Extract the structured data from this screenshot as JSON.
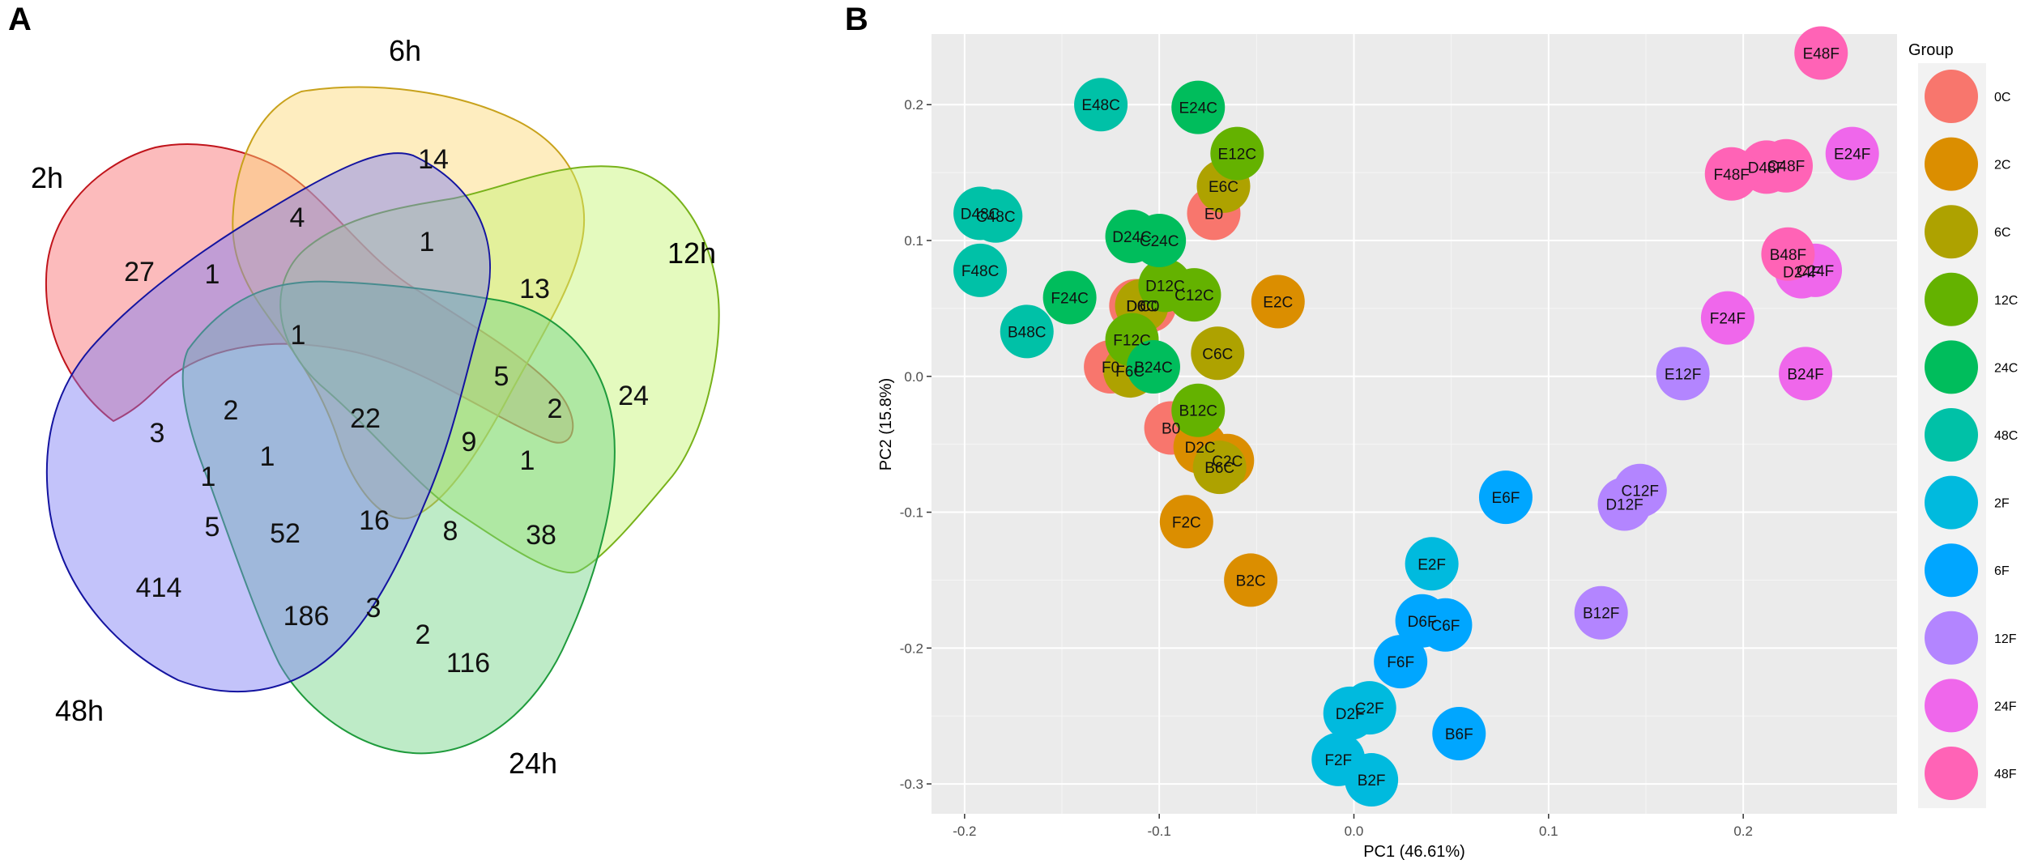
{
  "panels": {
    "a": "A",
    "b": "B"
  },
  "venn": {
    "sets": [
      {
        "name": "2h",
        "color": "#f8696b"
      },
      {
        "name": "6h",
        "color": "#fdd772"
      },
      {
        "name": "12h",
        "color": "#c4f46e"
      },
      {
        "name": "24h",
        "color": "#6ed283"
      },
      {
        "name": "48h",
        "color": "#7b7bf4"
      }
    ],
    "counts": [
      "27",
      "4",
      "14",
      "13",
      "24",
      "38",
      "116",
      "414",
      "1",
      "1",
      "2",
      "3",
      "1",
      "1",
      "5",
      "52",
      "186",
      "3",
      "2",
      "16",
      "8",
      "9",
      "1",
      "2",
      "5",
      "22",
      "1"
    ]
  },
  "chart_data": {
    "type": "scatter",
    "title": "",
    "xlabel": "PC1 (46.61%)",
    "ylabel": "PC2 (15.8%)",
    "xlim": [
      -0.217,
      0.279
    ],
    "ylim": [
      -0.322,
      0.252
    ],
    "xticks": [
      "-0.2",
      "-0.1",
      "0.0",
      "0.1",
      "0.2"
    ],
    "yticks": [
      "-0.3",
      "-0.2",
      "-0.1",
      "0.0",
      "0.1",
      "0.2"
    ],
    "legend_title": "Group",
    "legend_position": "right",
    "groups": [
      {
        "name": "0C",
        "color": "#f8766d"
      },
      {
        "name": "2C",
        "color": "#db8e00"
      },
      {
        "name": "6C",
        "color": "#aea200"
      },
      {
        "name": "12C",
        "color": "#64b200"
      },
      {
        "name": "24C",
        "color": "#00bd5c"
      },
      {
        "name": "48C",
        "color": "#00c1a7"
      },
      {
        "name": "2F",
        "color": "#00bade"
      },
      {
        "name": "6F",
        "color": "#00a6ff"
      },
      {
        "name": "12F",
        "color": "#b385ff"
      },
      {
        "name": "24F",
        "color": "#ef67eb"
      },
      {
        "name": "48F",
        "color": "#ff63b6"
      }
    ],
    "points": [
      {
        "label": "E0",
        "group": "0C",
        "x": -0.072,
        "y": 0.12
      },
      {
        "label": "D0",
        "group": "0C",
        "x": -0.112,
        "y": 0.052
      },
      {
        "label": "C0",
        "group": "0C",
        "x": -0.105,
        "y": 0.052
      },
      {
        "label": "F0",
        "group": "0C",
        "x": -0.125,
        "y": 0.007
      },
      {
        "label": "B0",
        "group": "0C",
        "x": -0.094,
        "y": -0.038
      },
      {
        "label": "E2C",
        "group": "2C",
        "x": -0.039,
        "y": 0.055
      },
      {
        "label": "D2C",
        "group": "2C",
        "x": -0.079,
        "y": -0.052
      },
      {
        "label": "C2C",
        "group": "2C",
        "x": -0.065,
        "y": -0.062
      },
      {
        "label": "F2C",
        "group": "2C",
        "x": -0.086,
        "y": -0.107
      },
      {
        "label": "B2C",
        "group": "2C",
        "x": -0.053,
        "y": -0.15
      },
      {
        "label": "E6C",
        "group": "6C",
        "x": -0.067,
        "y": 0.14
      },
      {
        "label": "D6C",
        "group": "6C",
        "x": -0.109,
        "y": 0.052
      },
      {
        "label": "C6C",
        "group": "6C",
        "x": -0.07,
        "y": 0.017
      },
      {
        "label": "F6C",
        "group": "6C",
        "x": -0.115,
        "y": 0.004
      },
      {
        "label": "B6C",
        "group": "6C",
        "x": -0.069,
        "y": -0.067
      },
      {
        "label": "E12C",
        "group": "12C",
        "x": -0.06,
        "y": 0.164
      },
      {
        "label": "D12C",
        "group": "12C",
        "x": -0.097,
        "y": 0.067
      },
      {
        "label": "C12C",
        "group": "12C",
        "x": -0.082,
        "y": 0.06
      },
      {
        "label": "F12C",
        "group": "12C",
        "x": -0.114,
        "y": 0.027
      },
      {
        "label": "B12C",
        "group": "12C",
        "x": -0.08,
        "y": -0.025
      },
      {
        "label": "E24C",
        "group": "24C",
        "x": -0.08,
        "y": 0.198
      },
      {
        "label": "D24C",
        "group": "24C",
        "x": -0.114,
        "y": 0.103
      },
      {
        "label": "C24C",
        "group": "24C",
        "x": -0.1,
        "y": 0.1
      },
      {
        "label": "F24C",
        "group": "24C",
        "x": -0.146,
        "y": 0.058
      },
      {
        "label": "B24C",
        "group": "24C",
        "x": -0.103,
        "y": 0.007
      },
      {
        "label": "E48C",
        "group": "48C",
        "x": -0.13,
        "y": 0.2
      },
      {
        "label": "D48C",
        "group": "48C",
        "x": -0.192,
        "y": 0.12
      },
      {
        "label": "C48C",
        "group": "48C",
        "x": -0.184,
        "y": 0.118
      },
      {
        "label": "F48C",
        "group": "48C",
        "x": -0.192,
        "y": 0.078
      },
      {
        "label": "B48C",
        "group": "48C",
        "x": -0.168,
        "y": 0.033
      },
      {
        "label": "E2F",
        "group": "2F",
        "x": 0.04,
        "y": -0.138
      },
      {
        "label": "D2F",
        "group": "2F",
        "x": -0.002,
        "y": -0.248
      },
      {
        "label": "C2F",
        "group": "2F",
        "x": 0.008,
        "y": -0.244
      },
      {
        "label": "F2F",
        "group": "2F",
        "x": -0.008,
        "y": -0.282
      },
      {
        "label": "B2F",
        "group": "2F",
        "x": 0.009,
        "y": -0.297
      },
      {
        "label": "E6F",
        "group": "6F",
        "x": 0.078,
        "y": -0.089
      },
      {
        "label": "D6F",
        "group": "6F",
        "x": 0.035,
        "y": -0.18
      },
      {
        "label": "C6F",
        "group": "6F",
        "x": 0.047,
        "y": -0.183
      },
      {
        "label": "F6F",
        "group": "6F",
        "x": 0.024,
        "y": -0.21
      },
      {
        "label": "B6F",
        "group": "6F",
        "x": 0.054,
        "y": -0.263
      },
      {
        "label": "E12F",
        "group": "12F",
        "x": 0.169,
        "y": 0.002
      },
      {
        "label": "D12F",
        "group": "12F",
        "x": 0.139,
        "y": -0.094
      },
      {
        "label": "C12F",
        "group": "12F",
        "x": 0.147,
        "y": -0.084
      },
      {
        "label": "B12F",
        "group": "12F",
        "x": 0.127,
        "y": -0.174
      },
      {
        "label": "E24F",
        "group": "24F",
        "x": 0.256,
        "y": 0.164
      },
      {
        "label": "D24F",
        "group": "24F",
        "x": 0.23,
        "y": 0.077
      },
      {
        "label": "C24F",
        "group": "24F",
        "x": 0.237,
        "y": 0.078
      },
      {
        "label": "F24F",
        "group": "24F",
        "x": 0.192,
        "y": 0.043
      },
      {
        "label": "B24F",
        "group": "24F",
        "x": 0.232,
        "y": 0.002
      },
      {
        "label": "E48F",
        "group": "48F",
        "x": 0.24,
        "y": 0.238
      },
      {
        "label": "D48F",
        "group": "48F",
        "x": 0.212,
        "y": 0.154
      },
      {
        "label": "C48F",
        "group": "48F",
        "x": 0.222,
        "y": 0.155
      },
      {
        "label": "F48F",
        "group": "48F",
        "x": 0.194,
        "y": 0.149
      },
      {
        "label": "B48F",
        "group": "48F",
        "x": 0.223,
        "y": 0.09
      }
    ]
  }
}
